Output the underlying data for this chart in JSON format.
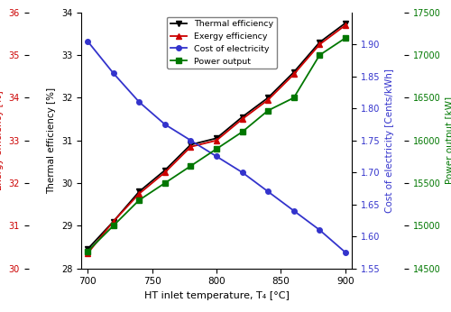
{
  "x": [
    700,
    720,
    740,
    760,
    780,
    800,
    820,
    840,
    860,
    880,
    900
  ],
  "thermal_efficiency": [
    28.45,
    29.1,
    29.8,
    30.3,
    30.9,
    31.05,
    31.55,
    32.0,
    32.6,
    33.3,
    33.75
  ],
  "exergy_efficiency": [
    28.35,
    29.1,
    29.75,
    30.25,
    30.85,
    31.0,
    31.5,
    31.95,
    32.55,
    33.25,
    33.7
  ],
  "cost_of_electricity": [
    1.905,
    1.855,
    1.81,
    1.775,
    1.75,
    1.725,
    1.7,
    1.67,
    1.64,
    1.61,
    1.575
  ],
  "power_output": [
    14700,
    15000,
    15300,
    15500,
    15700,
    15900,
    16100,
    16350,
    16500,
    17000,
    17200
  ],
  "thermal_color": "#000000",
  "exergy_color": "#cc0000",
  "cost_color": "#3333cc",
  "power_color": "#007700",
  "xlabel": "HT inlet temperature, T₄ [°C]",
  "ylabel_thermal": "Thermal efficiency [%]",
  "ylabel_exergy": "Exergy efficiency [%]",
  "ylabel_cost": "Cost of electricity [Cents/kWh]",
  "ylabel_power": "Power output [kW]",
  "thermal_ylim": [
    28,
    34
  ],
  "exergy_ylim": [
    30,
    36
  ],
  "cost_ylim": [
    1.55,
    1.95
  ],
  "power_ylim": [
    14500,
    17500
  ],
  "xticks": [
    700,
    750,
    800,
    850,
    900
  ],
  "thermal_yticks": [
    28,
    29,
    30,
    31,
    32,
    33,
    34
  ],
  "exergy_yticks": [
    30,
    31,
    32,
    33,
    34,
    35,
    36
  ],
  "cost_yticks": [
    1.55,
    1.6,
    1.65,
    1.7,
    1.75,
    1.8,
    1.85,
    1.9
  ],
  "power_yticks": [
    14500,
    15000,
    15500,
    16000,
    16500,
    17000,
    17500
  ],
  "figsize": [
    5.0,
    3.46
  ],
  "dpi": 100
}
